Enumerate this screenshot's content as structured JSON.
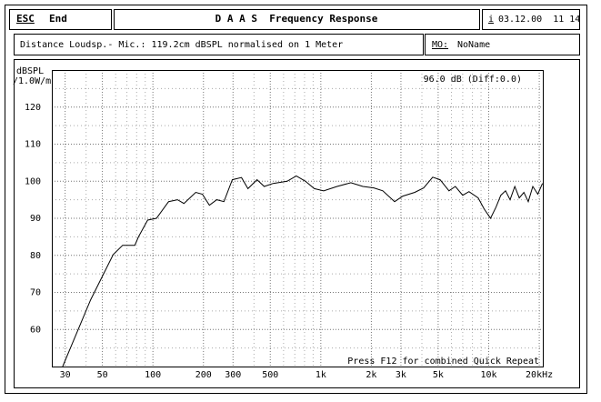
{
  "header": {
    "esc": "ESC",
    "end": "End",
    "title": "D A A S  Frequency Response",
    "info_key": "i",
    "datetime": "03.12.00  11 14",
    "measurement": "Distance Loudsp.- Mic.: 119.2cm dBSPL normalised on 1 Meter",
    "mo_label": "MO:",
    "mo_name": "NoName"
  },
  "chart_data": {
    "type": "line",
    "y_label": "dBSPL",
    "y_label_unit": "/1.0W/m",
    "readout": "96.0 dB (Diff:0.0)",
    "footer_note": "Press F12 for combined Quick Repeat",
    "log_x": true,
    "grid": true,
    "xlim": [
      25,
      21000
    ],
    "ylim": [
      50,
      130
    ],
    "xticks": [
      30,
      50,
      100,
      200,
      300,
      500,
      {
        "value": 1000,
        "label": "1k"
      },
      {
        "value": 2000,
        "label": "2k"
      },
      {
        "value": 3000,
        "label": "3k"
      },
      {
        "value": 5000,
        "label": "5k"
      },
      {
        "value": 10000,
        "label": "10k"
      },
      {
        "value": 20000,
        "label": "20kHz"
      }
    ],
    "xminor": [
      40,
      60,
      70,
      80,
      90,
      400,
      600,
      700,
      800,
      900,
      4000,
      6000,
      7000,
      8000,
      9000
    ],
    "yticks": [
      60,
      70,
      80,
      90,
      100,
      110,
      120
    ],
    "yminor": [
      55,
      65,
      75,
      85,
      95,
      105,
      115,
      125
    ],
    "x": [
      29,
      42.6,
      58,
      66,
      78,
      82,
      93,
      105,
      124,
      140,
      153,
      180,
      197,
      217,
      240,
      265,
      297,
      337,
      368,
      417,
      460,
      520,
      630,
      715,
      810,
      915,
      1040,
      1250,
      1510,
      1780,
      2070,
      2340,
      2750,
      3080,
      3630,
      4100,
      4640,
      5130,
      5800,
      6330,
      7000,
      7630,
      8650,
      9400,
      10250,
      11050,
      11800,
      12600,
      13400,
      14300,
      15200,
      16200,
      17200,
      18300,
      19600,
      20900
    ],
    "series": [
      {
        "color": "#000000",
        "values": [
          50,
          68,
          80.2,
          82.7,
          82.7,
          85,
          89.5,
          90,
          94.5,
          95,
          94,
          97,
          96.5,
          93.5,
          95,
          94.5,
          100.4,
          101,
          98,
          100.4,
          98.6,
          99.4,
          100,
          101.4,
          100,
          98,
          97.4,
          98.6,
          99.6,
          98.6,
          98.2,
          97.4,
          94.5,
          96,
          97,
          98.2,
          101.1,
          100.4,
          97.4,
          98.6,
          96.2,
          97.2,
          95.5,
          92.5,
          90,
          93,
          96.2,
          97.4,
          95,
          98.6,
          95.5,
          97,
          94.5,
          98.6,
          96.5,
          99.4
        ]
      }
    ]
  }
}
